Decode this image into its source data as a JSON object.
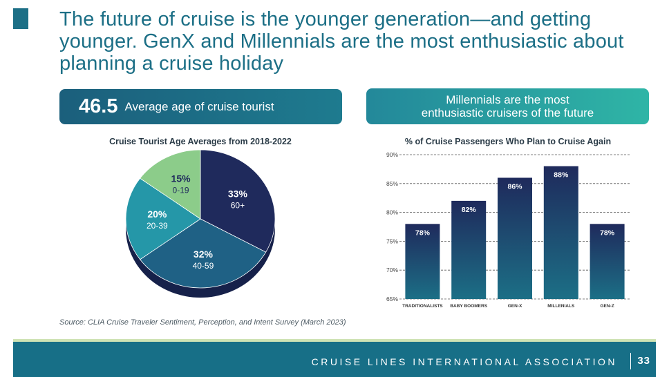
{
  "headline": "The future of cruise is the younger generation—and getting younger. GenX and Millennials are the most enthusiastic about planning a cruise holiday",
  "stat": {
    "value": "46.5",
    "label": "Average age of cruise tourist"
  },
  "callout": {
    "line1": "Millennials are the most",
    "line2": "enthusiastic cruisers of the future"
  },
  "source": "Source: CLIA Cruise Traveler Sentiment, Perception, and Intent Survey (March 2023)",
  "footer": {
    "org": "CRUISE LINES INTERNATIONAL ASSOCIATION",
    "page": "33"
  },
  "colors": {
    "brand": "#1c6f86",
    "navy": "#1f2a5c",
    "teal": "#2597a8",
    "green": "#8ccc8a"
  },
  "chart_data": [
    {
      "type": "pie",
      "title": "Cruise Tourist Age Averages from 2018-2022",
      "slices": [
        {
          "label": "60+",
          "value": 33,
          "display": "33%",
          "color": "#1f2a5c"
        },
        {
          "label": "40-59",
          "value": 32,
          "display": "32%",
          "color": "#1f6185"
        },
        {
          "label": "20-39",
          "value": 20,
          "display": "20%",
          "color": "#2597a8"
        },
        {
          "label": "0-19",
          "value": 15,
          "display": "15%",
          "color": "#8ccc8a"
        }
      ]
    },
    {
      "type": "bar",
      "title": "% of Cruise Passengers Who Plan to Cruise Again",
      "categories": [
        "TRADITIONALISTS",
        "BABY BOOMERS",
        "GEN-X",
        "MILLENIALS",
        "GEN-Z"
      ],
      "values": [
        78,
        82,
        86,
        88,
        78
      ],
      "labels": [
        "78%",
        "82%",
        "86%",
        "88%",
        "78%"
      ],
      "ylim": [
        65,
        90
      ],
      "yticks": [
        90,
        85,
        80,
        75,
        70,
        65
      ],
      "ytick_labels": [
        "90%",
        "85%",
        "80%",
        "75%",
        "70%",
        "65%"
      ],
      "grid": true
    }
  ]
}
